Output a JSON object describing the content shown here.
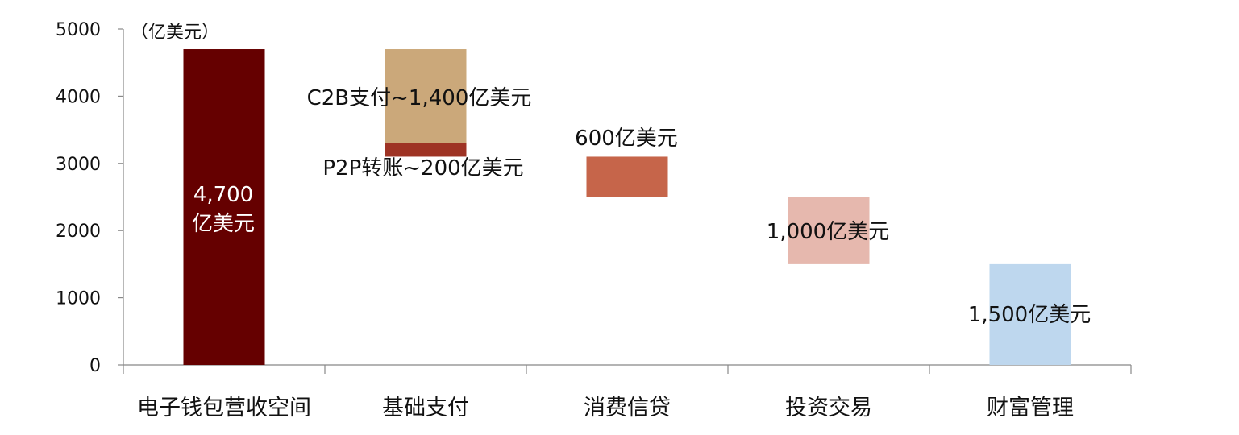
{
  "chart_data": {
    "type": "bar",
    "subtype": "waterfall",
    "unit_label": "（亿美元）",
    "ylim": [
      0,
      5000
    ],
    "y_ticks": [
      "0",
      "1000",
      "2000",
      "3000",
      "4000",
      "5000"
    ],
    "grid": false,
    "legend": "none",
    "categories": [
      "电子钱包营收空间",
      "基础支付",
      "消费信贷",
      "投资交易",
      "财富管理"
    ],
    "segments": [
      {
        "category": "电子钱包营收空间",
        "from": 0,
        "to": 4700,
        "value": 4700,
        "color": "#650000",
        "label": "4,700\n亿美元",
        "label_color": "#ffffff"
      },
      {
        "category": "基础支付",
        "from": 3300,
        "to": 4700,
        "value": 1400,
        "color": "#cba87a",
        "label": "C2B支付~1,400亿美元",
        "label_color": "#111111"
      },
      {
        "category": "基础支付",
        "from": 3100,
        "to": 3300,
        "value": 200,
        "color": "#9e3324",
        "label": "P2P转账~200亿美元",
        "label_color": "#111111"
      },
      {
        "category": "消费信贷",
        "from": 2500,
        "to": 3100,
        "value": 600,
        "color": "#c6654a",
        "label": "600亿美元",
        "label_color": "#111111"
      },
      {
        "category": "投资交易",
        "from": 1500,
        "to": 2500,
        "value": 1000,
        "color": "#e6b8ae",
        "label": "1,000亿美元",
        "label_color": "#111111"
      },
      {
        "category": "财富管理",
        "from": 0,
        "to": 1500,
        "value": 1500,
        "color": "#bed7ee",
        "label": "1,500亿美元",
        "label_color": "#111111"
      }
    ]
  }
}
